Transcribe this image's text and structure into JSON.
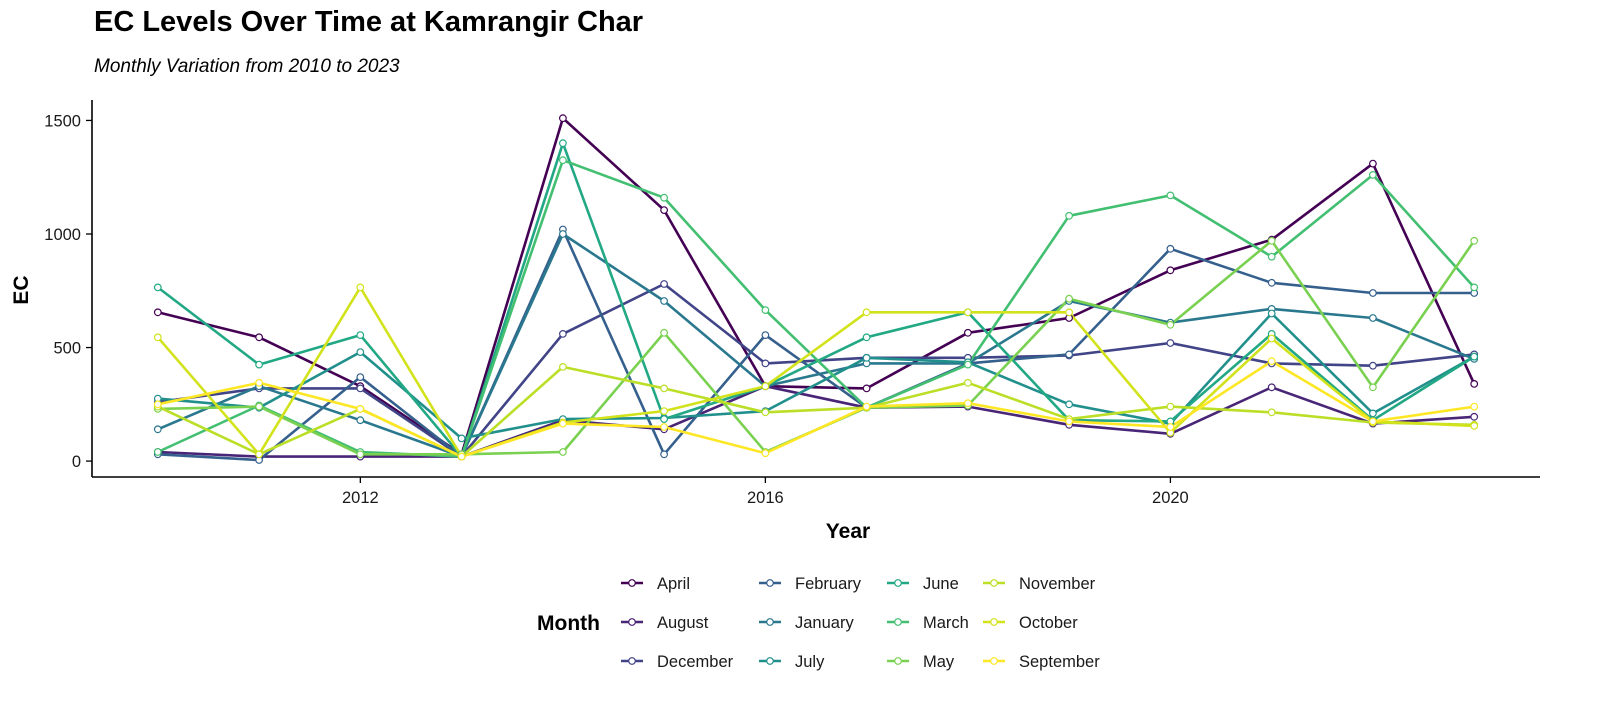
{
  "chart_data": {
    "type": "line",
    "title": "EC Levels Over Time at Kamrangir Char",
    "subtitle": "Monthly Variation from 2010 to 2023",
    "xlabel": "Year",
    "ylabel": "EC",
    "x_ticks": [
      2012,
      2016,
      2020
    ],
    "y_ticks": [
      0,
      500,
      1000,
      1500
    ],
    "xlim": [
      2009.35,
      2023.65
    ],
    "ylim": [
      -70,
      1590
    ],
    "grid": false,
    "legend": {
      "title": "Month",
      "position": "bottom"
    },
    "x": [
      2010,
      2011,
      2012,
      2013,
      2014,
      2015,
      2016,
      2017,
      2018,
      2019,
      2020,
      2021,
      2022,
      2023
    ],
    "series": [
      {
        "name": "April",
        "color": "#440154",
        "values": [
          655,
          545,
          330,
          30,
          1510,
          1105,
          330,
          320,
          565,
          630,
          840,
          975,
          1310,
          340
        ]
      },
      {
        "name": "August",
        "color": "#482576",
        "values": [
          40,
          20,
          20,
          20,
          180,
          140,
          330,
          235,
          240,
          160,
          120,
          325,
          165,
          195
        ]
      },
      {
        "name": "December",
        "color": "#414487",
        "values": [
          260,
          320,
          320,
          20,
          560,
          780,
          430,
          455,
          455,
          465,
          520,
          430,
          420,
          470
        ]
      },
      {
        "name": "February",
        "color": "#35608D",
        "values": [
          30,
          5,
          370,
          20,
          1020,
          30,
          555,
          235,
          430,
          470,
          935,
          785,
          740,
          740
        ]
      },
      {
        "name": "January",
        "color": "#2A788E",
        "values": [
          140,
          330,
          180,
          20,
          1000,
          705,
          330,
          430,
          430,
          705,
          610,
          670,
          630,
          450
        ]
      },
      {
        "name": "July",
        "color": "#21908C",
        "values": [
          275,
          235,
          480,
          100,
          185,
          190,
          220,
          455,
          435,
          250,
          165,
          650,
          210,
          460
        ]
      },
      {
        "name": "June",
        "color": "#22A884",
        "values": [
          765,
          425,
          555,
          20,
          1400,
          185,
          330,
          545,
          655,
          180,
          175,
          560,
          180,
          460
        ]
      },
      {
        "name": "March",
        "color": "#43BF71",
        "values": [
          40,
          245,
          40,
          20,
          1325,
          1160,
          665,
          235,
          425,
          1080,
          1170,
          900,
          1260,
          765
        ]
      },
      {
        "name": "May",
        "color": "#7AD151",
        "values": [
          230,
          240,
          30,
          30,
          40,
          565,
          40,
          235,
          245,
          715,
          600,
          970,
          325,
          970
        ]
      },
      {
        "name": "November",
        "color": "#BBDF27",
        "values": [
          240,
          30,
          230,
          20,
          415,
          320,
          215,
          235,
          345,
          185,
          240,
          215,
          170,
          160
        ]
      },
      {
        "name": "October",
        "color": "#D2E21B",
        "values": [
          545,
          30,
          765,
          20,
          170,
          220,
          330,
          655,
          655,
          655,
          125,
          540,
          175,
          155
        ]
      },
      {
        "name": "September",
        "color": "#FDE725",
        "values": [
          250,
          345,
          230,
          20,
          165,
          150,
          35,
          240,
          255,
          175,
          150,
          440,
          175,
          240
        ]
      }
    ]
  }
}
